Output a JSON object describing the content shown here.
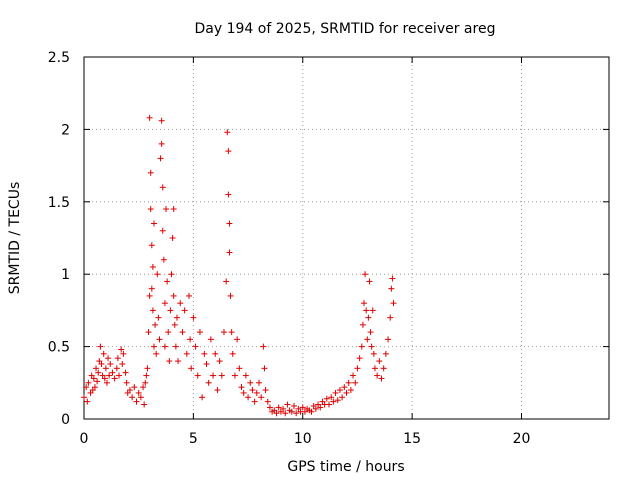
{
  "chart_data": {
    "type": "scatter",
    "title": "Day 194 of 2025, SRMTID for receiver areg",
    "xlabel": "GPS time / hours",
    "ylabel": "SRMTID / TECUs",
    "xlim": [
      0,
      24
    ],
    "ylim": [
      0,
      2.5
    ],
    "xticks": [
      0,
      5,
      10,
      15,
      20
    ],
    "yticks": [
      0,
      0.5,
      1,
      1.5,
      2,
      2.5
    ],
    "xtick_labels": [
      "0",
      "5",
      "10",
      "15",
      "20"
    ],
    "ytick_labels": [
      "0",
      "0.5",
      "1",
      "1.5",
      "2",
      "2.5"
    ],
    "grid": true,
    "marker": "+",
    "series": [
      {
        "name": "SRMTID",
        "color": "#e00000",
        "points": [
          [
            0.0,
            0.15
          ],
          [
            0.1,
            0.22
          ],
          [
            0.15,
            0.12
          ],
          [
            0.2,
            0.25
          ],
          [
            0.3,
            0.18
          ],
          [
            0.35,
            0.3
          ],
          [
            0.4,
            0.2
          ],
          [
            0.45,
            0.28
          ],
          [
            0.5,
            0.22
          ],
          [
            0.55,
            0.35
          ],
          [
            0.6,
            0.26
          ],
          [
            0.65,
            0.32
          ],
          [
            0.7,
            0.4
          ],
          [
            0.75,
            0.5
          ],
          [
            0.8,
            0.38
          ],
          [
            0.85,
            0.3
          ],
          [
            0.9,
            0.45
          ],
          [
            0.95,
            0.28
          ],
          [
            1.0,
            0.35
          ],
          [
            1.05,
            0.25
          ],
          [
            1.1,
            0.42
          ],
          [
            1.15,
            0.3
          ],
          [
            1.2,
            0.38
          ],
          [
            1.3,
            0.32
          ],
          [
            1.4,
            0.28
          ],
          [
            1.5,
            0.35
          ],
          [
            1.55,
            0.42
          ],
          [
            1.6,
            0.3
          ],
          [
            1.7,
            0.48
          ],
          [
            1.75,
            0.38
          ],
          [
            1.8,
            0.45
          ],
          [
            1.9,
            0.32
          ],
          [
            1.95,
            0.25
          ],
          [
            2.0,
            0.18
          ],
          [
            2.1,
            0.2
          ],
          [
            2.2,
            0.15
          ],
          [
            2.3,
            0.22
          ],
          [
            2.4,
            0.12
          ],
          [
            2.5,
            0.18
          ],
          [
            2.6,
            0.15
          ],
          [
            2.7,
            0.22
          ],
          [
            2.75,
            0.1
          ],
          [
            2.8,
            0.25
          ],
          [
            2.85,
            0.3
          ],
          [
            2.9,
            0.35
          ],
          [
            2.95,
            0.6
          ],
          [
            3.0,
            0.85
          ],
          [
            3.0,
            2.08
          ],
          [
            3.05,
            1.7
          ],
          [
            3.05,
            1.45
          ],
          [
            3.1,
            1.2
          ],
          [
            3.1,
            0.9
          ],
          [
            3.15,
            1.05
          ],
          [
            3.15,
            0.75
          ],
          [
            3.2,
            0.5
          ],
          [
            3.2,
            1.35
          ],
          [
            3.25,
            0.65
          ],
          [
            3.3,
            0.45
          ],
          [
            3.35,
            1.0
          ],
          [
            3.4,
            0.7
          ],
          [
            3.45,
            0.55
          ],
          [
            3.5,
            1.8
          ],
          [
            3.55,
            2.06
          ],
          [
            3.55,
            1.9
          ],
          [
            3.6,
            1.6
          ],
          [
            3.6,
            1.3
          ],
          [
            3.65,
            1.1
          ],
          [
            3.7,
            0.8
          ],
          [
            3.7,
            0.5
          ],
          [
            3.75,
            1.45
          ],
          [
            3.8,
            0.95
          ],
          [
            3.85,
            0.6
          ],
          [
            3.9,
            0.4
          ],
          [
            3.95,
            0.75
          ],
          [
            4.0,
            1.0
          ],
          [
            4.05,
            1.25
          ],
          [
            4.1,
            1.45
          ],
          [
            4.1,
            0.85
          ],
          [
            4.15,
            0.65
          ],
          [
            4.2,
            0.5
          ],
          [
            4.25,
            0.7
          ],
          [
            4.3,
            0.4
          ],
          [
            4.4,
            0.8
          ],
          [
            4.5,
            0.6
          ],
          [
            4.6,
            0.75
          ],
          [
            4.7,
            0.45
          ],
          [
            4.8,
            0.85
          ],
          [
            4.85,
            0.55
          ],
          [
            4.9,
            0.35
          ],
          [
            5.0,
            0.7
          ],
          [
            5.1,
            0.5
          ],
          [
            5.2,
            0.3
          ],
          [
            5.3,
            0.6
          ],
          [
            5.4,
            0.15
          ],
          [
            5.5,
            0.45
          ],
          [
            5.6,
            0.38
          ],
          [
            5.7,
            0.25
          ],
          [
            5.8,
            0.55
          ],
          [
            5.9,
            0.3
          ],
          [
            6.0,
            0.45
          ],
          [
            6.1,
            0.2
          ],
          [
            6.2,
            0.4
          ],
          [
            6.3,
            0.3
          ],
          [
            6.4,
            0.6
          ],
          [
            6.5,
            0.95
          ],
          [
            6.55,
            1.98
          ],
          [
            6.6,
            1.85
          ],
          [
            6.6,
            1.55
          ],
          [
            6.65,
            1.35
          ],
          [
            6.65,
            1.15
          ],
          [
            6.7,
            0.85
          ],
          [
            6.75,
            0.6
          ],
          [
            6.8,
            0.45
          ],
          [
            6.9,
            0.3
          ],
          [
            7.0,
            0.55
          ],
          [
            7.1,
            0.35
          ],
          [
            7.2,
            0.22
          ],
          [
            7.3,
            0.18
          ],
          [
            7.4,
            0.3
          ],
          [
            7.5,
            0.15
          ],
          [
            7.6,
            0.25
          ],
          [
            7.7,
            0.2
          ],
          [
            7.8,
            0.12
          ],
          [
            7.9,
            0.18
          ],
          [
            8.0,
            0.25
          ],
          [
            8.1,
            0.15
          ],
          [
            8.2,
            0.5
          ],
          [
            8.25,
            0.35
          ],
          [
            8.3,
            0.2
          ],
          [
            8.4,
            0.12
          ],
          [
            8.5,
            0.08
          ],
          [
            8.6,
            0.05
          ],
          [
            8.7,
            0.06
          ],
          [
            8.8,
            0.04
          ],
          [
            8.9,
            0.08
          ],
          [
            9.0,
            0.05
          ],
          [
            9.1,
            0.07
          ],
          [
            9.2,
            0.04
          ],
          [
            9.3,
            0.1
          ],
          [
            9.4,
            0.06
          ],
          [
            9.5,
            0.05
          ],
          [
            9.6,
            0.09
          ],
          [
            9.7,
            0.04
          ],
          [
            9.8,
            0.07
          ],
          [
            9.9,
            0.05
          ],
          [
            10.0,
            0.08
          ],
          [
            10.1,
            0.05
          ],
          [
            10.2,
            0.07
          ],
          [
            10.3,
            0.06
          ],
          [
            10.4,
            0.05
          ],
          [
            10.5,
            0.09
          ],
          [
            10.6,
            0.07
          ],
          [
            10.7,
            0.1
          ],
          [
            10.8,
            0.08
          ],
          [
            10.9,
            0.12
          ],
          [
            11.0,
            0.1
          ],
          [
            11.1,
            0.14
          ],
          [
            11.2,
            0.1
          ],
          [
            11.3,
            0.15
          ],
          [
            11.4,
            0.12
          ],
          [
            11.5,
            0.18
          ],
          [
            11.6,
            0.13
          ],
          [
            11.7,
            0.2
          ],
          [
            11.8,
            0.15
          ],
          [
            11.9,
            0.22
          ],
          [
            12.0,
            0.18
          ],
          [
            12.1,
            0.25
          ],
          [
            12.2,
            0.2
          ],
          [
            12.3,
            0.3
          ],
          [
            12.4,
            0.25
          ],
          [
            12.5,
            0.35
          ],
          [
            12.6,
            0.42
          ],
          [
            12.7,
            0.5
          ],
          [
            12.75,
            0.65
          ],
          [
            12.8,
            0.8
          ],
          [
            12.85,
            1.0
          ],
          [
            12.9,
            0.75
          ],
          [
            12.95,
            0.55
          ],
          [
            13.0,
            0.7
          ],
          [
            13.05,
            0.95
          ],
          [
            13.1,
            0.6
          ],
          [
            13.15,
            0.5
          ],
          [
            13.2,
            0.75
          ],
          [
            13.25,
            0.45
          ],
          [
            13.3,
            0.35
          ],
          [
            13.4,
            0.3
          ],
          [
            13.5,
            0.4
          ],
          [
            13.6,
            0.28
          ],
          [
            13.7,
            0.35
          ],
          [
            13.8,
            0.45
          ],
          [
            13.9,
            0.55
          ],
          [
            14.0,
            0.7
          ],
          [
            14.05,
            0.9
          ],
          [
            14.1,
            0.97
          ],
          [
            14.15,
            0.8
          ]
        ]
      }
    ]
  }
}
